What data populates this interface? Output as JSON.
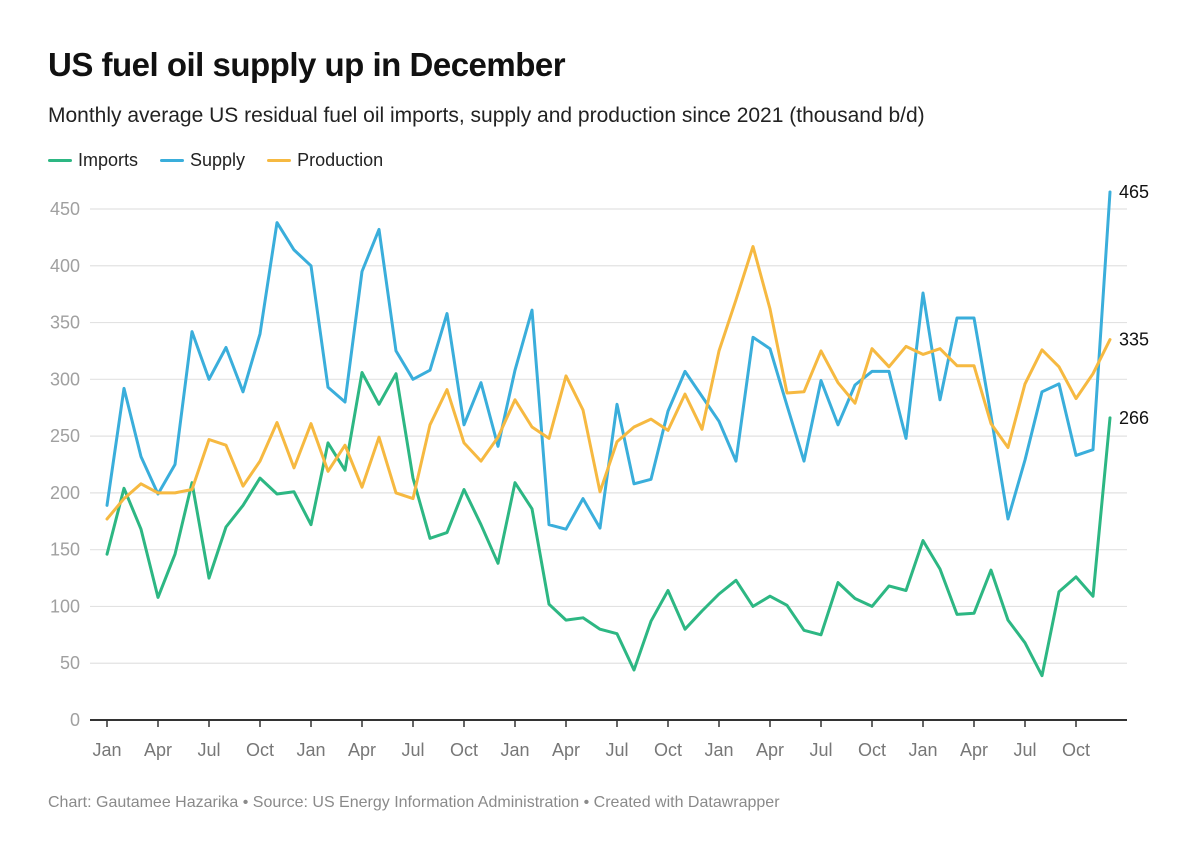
{
  "header": {
    "title": "US fuel oil supply up in December",
    "subtitle": "Monthly average US residual fuel oil imports, supply and production since 2021 (thousand b/d)"
  },
  "footer": {
    "text": "Chart: Gautamee Hazarika • Source: US Energy Information Administration  • Created with Datawrapper"
  },
  "chart_data": {
    "type": "line",
    "title": "US fuel oil supply up in December",
    "subtitle": "Monthly average US residual fuel oil imports, supply and production since 2021 (thousand b/d)",
    "xlabel": "",
    "ylabel": "",
    "ylim": [
      0,
      450
    ],
    "yticks": [
      0,
      50,
      100,
      150,
      200,
      250,
      300,
      350,
      400,
      450
    ],
    "grid": true,
    "legend": "top-left",
    "x_start": "Jan 2021",
    "x_end": "Dec 2025",
    "xtick_labels": [
      "Jan",
      "Apr",
      "Jul",
      "Oct",
      "Jan",
      "Apr",
      "Jul",
      "Oct",
      "Jan",
      "Apr",
      "Jul",
      "Oct",
      "Jan",
      "Apr",
      "Jul",
      "Oct",
      "Jan",
      "Apr",
      "Jul",
      "Oct"
    ],
    "xtick_month_index": [
      0,
      3,
      6,
      9,
      12,
      15,
      18,
      21,
      24,
      27,
      30,
      33,
      36,
      39,
      42,
      45,
      48,
      51,
      54,
      57
    ],
    "series": [
      {
        "name": "Imports",
        "color": "#2db783",
        "end_label": "266",
        "values": [
          146,
          204,
          168,
          108,
          146,
          209,
          125,
          170,
          189,
          213,
          199,
          201,
          172,
          244,
          220,
          306,
          278,
          305,
          213,
          160,
          165,
          203,
          172,
          138,
          209,
          186,
          102,
          88,
          90,
          80,
          76,
          44,
          87,
          114,
          80,
          96,
          111,
          123,
          100,
          109,
          101,
          79,
          75,
          121,
          107,
          100,
          118,
          114,
          158,
          133,
          93,
          94,
          132,
          88,
          68,
          39,
          113,
          126,
          109,
          266
        ]
      },
      {
        "name": "Supply",
        "color": "#3aaedb",
        "end_label": "465",
        "values": [
          189,
          292,
          232,
          199,
          225,
          342,
          300,
          328,
          289,
          340,
          438,
          414,
          400,
          293,
          280,
          395,
          432,
          325,
          300,
          308,
          358,
          260,
          297,
          241,
          308,
          361,
          172,
          168,
          195,
          169,
          278,
          208,
          212,
          272,
          307,
          285,
          263,
          228,
          337,
          327,
          277,
          228,
          299,
          260,
          295,
          307,
          307,
          248,
          376,
          282,
          354,
          354,
          268,
          177,
          229,
          289,
          296,
          233,
          238,
          465
        ]
      },
      {
        "name": "Production",
        "color": "#f6b941",
        "end_label": "335",
        "values": [
          177,
          195,
          208,
          200,
          200,
          203,
          247,
          242,
          206,
          228,
          262,
          222,
          261,
          219,
          242,
          205,
          249,
          200,
          195,
          260,
          291,
          244,
          228,
          249,
          282,
          258,
          248,
          303,
          273,
          201,
          245,
          258,
          265,
          255,
          287,
          256,
          325,
          370,
          417,
          362,
          288,
          289,
          325,
          297,
          279,
          327,
          311,
          329,
          322,
          327,
          312,
          312,
          261,
          240,
          296,
          326,
          311,
          283,
          305,
          335
        ]
      }
    ]
  }
}
